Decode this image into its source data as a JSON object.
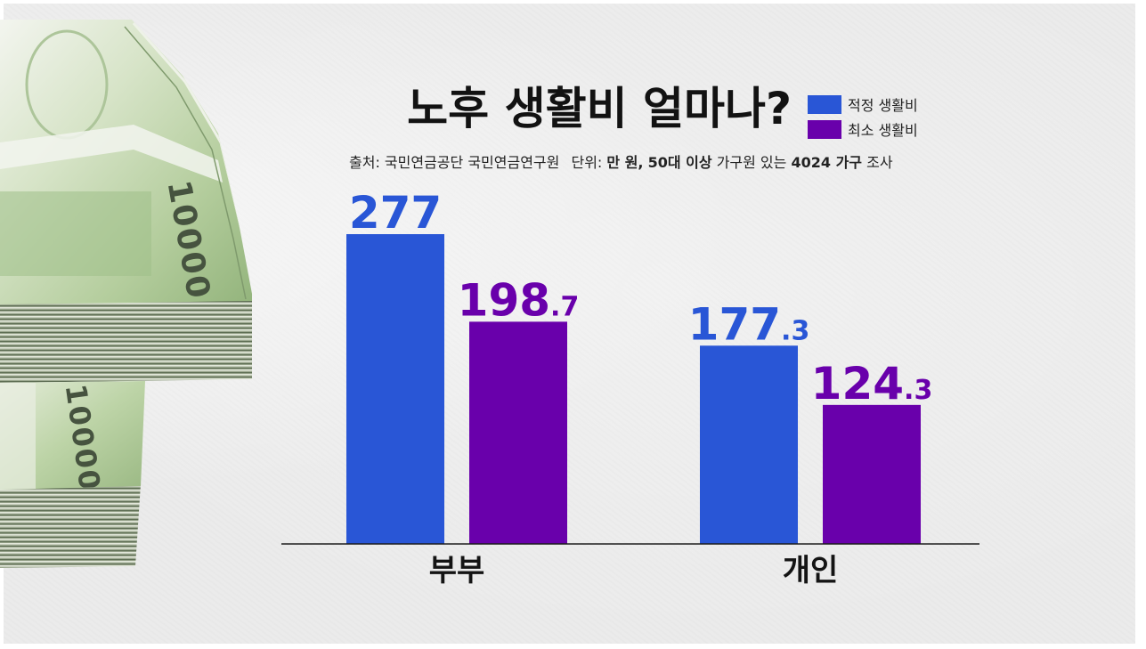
{
  "chart_data": {
    "type": "bar",
    "title": "노후 생활비 얼마나?",
    "subtitle_parts": [
      "출처: 국민연금공단 국민연금연구원",
      "단위:",
      "만 원,",
      "50대 이상",
      "가구원 있는",
      "4024 가구",
      "조사"
    ],
    "categories": [
      "부부",
      "개인"
    ],
    "series": [
      {
        "name": "적정 생활비",
        "color": "#2956d6",
        "values": [
          277,
          177.3
        ]
      },
      {
        "name": "최소 생활비",
        "color": "#6900ab",
        "values": [
          198.7,
          124.3
        ]
      }
    ],
    "xlabel": "",
    "ylabel": "",
    "y_axis_visible": false,
    "grid": false,
    "data_labels": true,
    "legend_position": "top-right"
  },
  "illustration": {
    "banknote_denomination": "10000"
  }
}
